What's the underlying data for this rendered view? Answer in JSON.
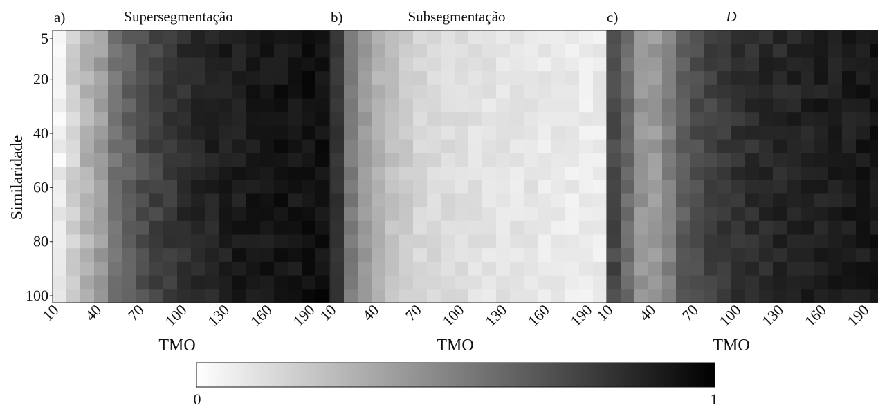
{
  "chart_data": [
    {
      "type": "heatmap",
      "panel_label": "a)",
      "title": "Supersegmentação",
      "title_italic": false,
      "xlabel": "TMO",
      "ylabel": "Similaridade",
      "x_tick_labels": [
        "10",
        "40",
        "70",
        "100",
        "130",
        "160",
        "190"
      ],
      "y_tick_labels": [
        "5",
        "20",
        "40",
        "60",
        "80",
        "100"
      ],
      "x_range": [
        10,
        200
      ],
      "y_range": [
        5,
        100
      ],
      "value_range": [
        0,
        1
      ],
      "column_profile": [
        0.06,
        0.18,
        0.3,
        0.38,
        0.55,
        0.62,
        0.7,
        0.74,
        0.78,
        0.82,
        0.84,
        0.86,
        0.88,
        0.89,
        0.9,
        0.91,
        0.92,
        0.92,
        0.93,
        0.94
      ],
      "noise": 0.05,
      "seed": 11
    },
    {
      "type": "heatmap",
      "panel_label": "b)",
      "title": "Subsegmentação",
      "title_italic": false,
      "xlabel": "TMO",
      "x_tick_labels": [
        "10",
        "40",
        "70",
        "100",
        "130",
        "160",
        "190"
      ],
      "x_range": [
        10,
        200
      ],
      "y_range": [
        5,
        100
      ],
      "value_range": [
        0,
        1
      ],
      "column_profile": [
        0.8,
        0.52,
        0.4,
        0.3,
        0.24,
        0.2,
        0.16,
        0.15,
        0.14,
        0.13,
        0.12,
        0.11,
        0.11,
        0.1,
        0.1,
        0.09,
        0.09,
        0.08,
        0.08,
        0.08
      ],
      "noise": 0.035,
      "seed": 23
    },
    {
      "type": "heatmap",
      "panel_label": "c)",
      "title": "D",
      "title_italic": true,
      "xlabel": "TMO",
      "x_tick_labels": [
        "10",
        "40",
        "70",
        "100",
        "130",
        "160",
        "190"
      ],
      "x_range": [
        10,
        200
      ],
      "y_range": [
        5,
        100
      ],
      "value_range": [
        0,
        1
      ],
      "column_profile": [
        0.72,
        0.58,
        0.42,
        0.4,
        0.5,
        0.64,
        0.7,
        0.74,
        0.78,
        0.8,
        0.82,
        0.84,
        0.85,
        0.86,
        0.87,
        0.88,
        0.88,
        0.89,
        0.9,
        0.91
      ],
      "noise": 0.05,
      "seed": 37
    }
  ],
  "colorbar": {
    "min_label": "0",
    "max_label": "1",
    "cmap": "gray_r",
    "low_color": "#ffffff",
    "high_color": "#000000"
  }
}
